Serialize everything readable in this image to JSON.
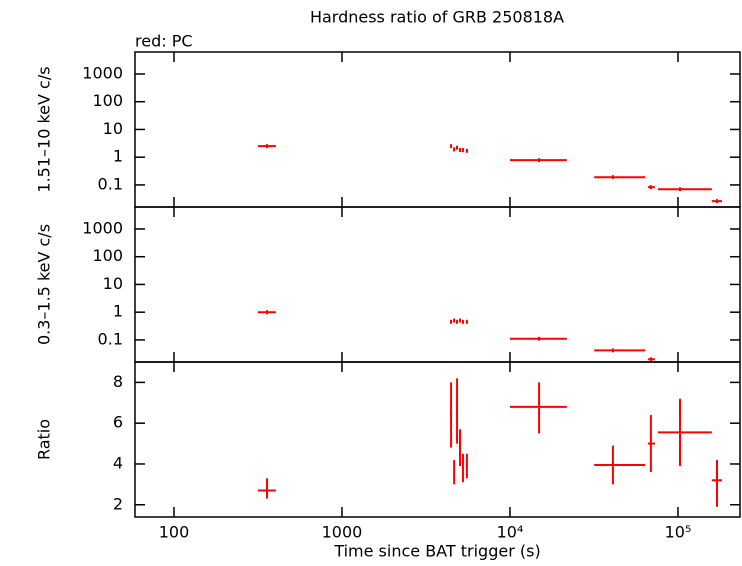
{
  "chart_data": [
    {
      "type": "scatter",
      "title": "Hardness ratio of GRB 250818A",
      "subtitle": "red: PC",
      "ylabel": "1.51–10 keV c/s",
      "xlog": true,
      "ylog": true,
      "xlim": [
        58.6,
        234000
      ],
      "ylim": [
        0.016,
        6200
      ],
      "yticks": [
        1000,
        100,
        10,
        1,
        0.1
      ],
      "x": [
        358,
        4460,
        4650,
        4840,
        5040,
        5250,
        5540,
        14900,
        41000,
        69000,
        102800,
        170700
      ],
      "xlow": [
        316,
        4400,
        4590,
        4780,
        4980,
        5190,
        5460,
        10000,
        31700,
        66200,
        76000,
        159000
      ],
      "xhigh": [
        404,
        4520,
        4710,
        4900,
        5100,
        5310,
        5620,
        21800,
        63700,
        72900,
        159000,
        182800
      ],
      "series": [
        {
          "color": "#ff0000",
          "values": [
            2.5,
            2.5,
            1.9,
            2.2,
            1.8,
            1.8,
            1.7,
            0.78,
            0.19,
            0.083,
            0.07,
            0.026
          ]
        }
      ]
    },
    {
      "type": "scatter",
      "ylabel": "0.3–1.5 keV c/s",
      "xlog": true,
      "ylog": true,
      "xlim": [
        58.6,
        234000
      ],
      "ylim": [
        0.016,
        6200
      ],
      "yticks": [
        1000,
        100,
        10,
        1,
        0.1
      ],
      "x": [
        358,
        4460,
        4650,
        4840,
        5040,
        5250,
        5540,
        14900,
        41000,
        69000,
        102800,
        170700
      ],
      "xlow": [
        316,
        4400,
        4590,
        4780,
        4980,
        5190,
        5460,
        10000,
        31700,
        66200,
        76000,
        159000
      ],
      "xhigh": [
        404,
        4520,
        4710,
        4900,
        5100,
        5310,
        5620,
        21800,
        63700,
        72900,
        159000,
        182800
      ],
      "series": [
        {
          "color": "#ff0000",
          "values": [
            1.0,
            0.45,
            0.5,
            0.45,
            0.5,
            0.45,
            0.45,
            0.11,
            0.042,
            0.02,
            null,
            null
          ]
        }
      ]
    },
    {
      "type": "scatter",
      "ylabel": "Ratio",
      "xlabel": "Time since BAT trigger (s)",
      "xlog": true,
      "ylog": false,
      "xlim": [
        58.6,
        234000
      ],
      "ylim": [
        1.4,
        9
      ],
      "yticks": [
        2,
        4,
        6,
        8
      ],
      "xticks": [
        100,
        1000,
        {
          "value": 10000,
          "label": "10⁴"
        },
        {
          "value": 100000,
          "label": "10⁵"
        }
      ],
      "x": [
        358,
        4460,
        4650,
        4840,
        5040,
        5250,
        5540,
        14900,
        41000,
        69000,
        102800,
        170700
      ],
      "xlow": [
        316,
        4400,
        4590,
        4780,
        4980,
        5190,
        5460,
        10000,
        31700,
        66200,
        76000,
        159000
      ],
      "xhigh": [
        404,
        4520,
        4710,
        4900,
        5100,
        5310,
        5620,
        21800,
        63700,
        72900,
        159000,
        182800
      ],
      "series": [
        {
          "color": "#ff0000",
          "values": [
            2.7,
            6.4,
            3.6,
            6.6,
            4.8,
            3.8,
            3.9,
            6.8,
            3.95,
            5.0,
            5.55,
            3.2
          ],
          "ylow": [
            2.3,
            4.8,
            3.0,
            5.0,
            3.9,
            3.1,
            3.3,
            5.5,
            3.0,
            3.6,
            3.9,
            1.9
          ],
          "yhigh": [
            3.3,
            8.0,
            4.2,
            8.2,
            5.7,
            4.5,
            4.5,
            8.0,
            4.9,
            6.4,
            7.2,
            4.2
          ]
        }
      ]
    }
  ]
}
